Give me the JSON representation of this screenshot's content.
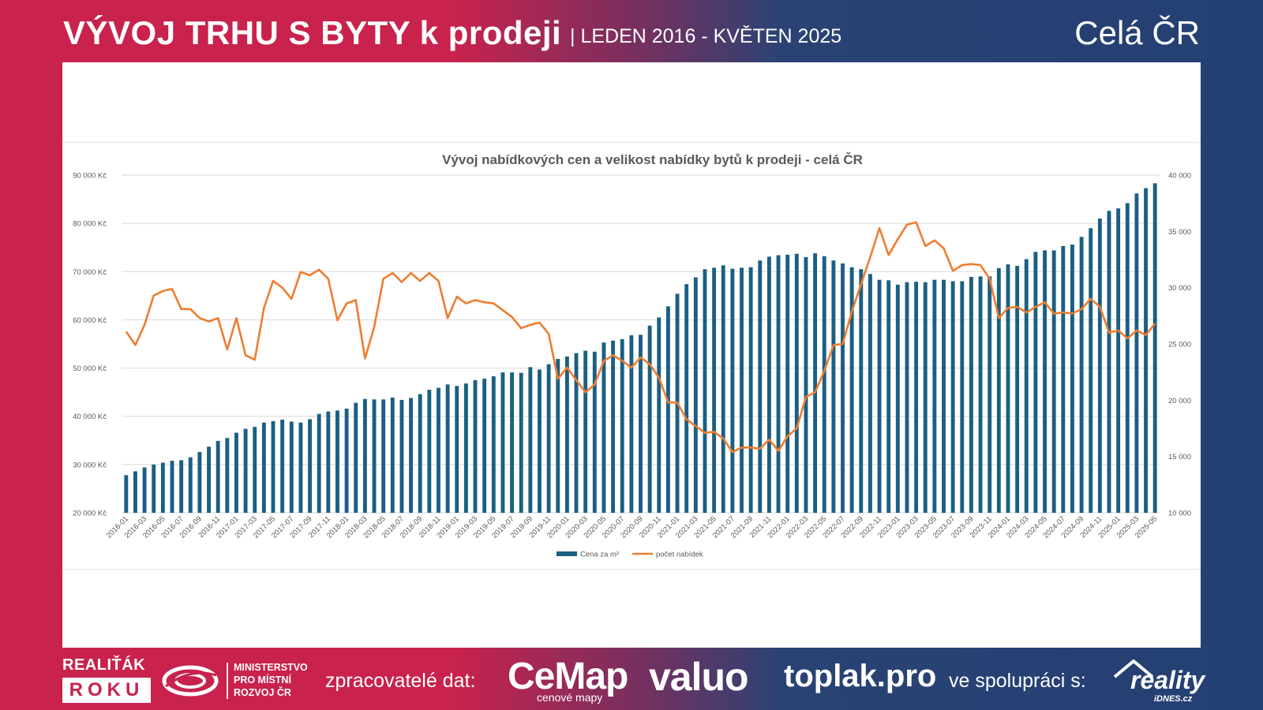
{
  "header": {
    "title": "VÝVOJ TRHU S BYTY k prodeji",
    "subtitle": "| LEDEN 2016 - KVĚTEN 2025",
    "region": "Celá ČR"
  },
  "colors": {
    "bar": "#1b5f82",
    "line": "#ee7d31",
    "brand_red": "#c8224d",
    "brand_blue": "#243f73"
  },
  "chart_data": {
    "type": "bar+line",
    "title": "Vývoj nabídkových cen a velikost nabídky bytů k prodeji - celá ČR",
    "grid": true,
    "legend_position": "bottom",
    "y_left": {
      "label": "Cena za m²",
      "ylim": [
        20000,
        90000
      ],
      "ticks": [
        20000,
        30000,
        40000,
        50000,
        60000,
        70000,
        80000,
        90000
      ],
      "tick_labels": [
        "20 000 Kč",
        "30 000 Kč",
        "40 000 Kč",
        "50 000 Kč",
        "60 000 Kč",
        "70 000 Kč",
        "80 000 Kč",
        "90 000 Kč"
      ]
    },
    "y_right": {
      "label": "počet nabídek",
      "ylim": [
        10000,
        40000
      ],
      "ticks": [
        10000,
        15000,
        20000,
        25000,
        30000,
        35000,
        40000
      ],
      "tick_labels": [
        "10 000",
        "15 000",
        "20 000",
        "25 000",
        "30 000",
        "35 000",
        "40 000"
      ]
    },
    "x_tick_labels": [
      "2016-01",
      "2016-03",
      "2016-05",
      "2016-07",
      "2016-09",
      "2016-11",
      "2017-01",
      "2017-03",
      "2017-05",
      "2017-07",
      "2017-09",
      "2017-11",
      "2018-01",
      "2018-03",
      "2018-05",
      "2018-07",
      "2018-09",
      "2018-11",
      "2019-01",
      "2019-03",
      "2019-05",
      "2019-07",
      "2019-09",
      "2019-11",
      "2020-01",
      "2020-03",
      "2020-05",
      "2020-07",
      "2020-09",
      "2020-11",
      "2021-01",
      "2021-03",
      "2021-05",
      "2021-07",
      "2021-09",
      "2021-11",
      "2022-01",
      "2022-03",
      "2022-05",
      "2022-07",
      "2022-09",
      "2022-11",
      "2023-01",
      "2023-03",
      "2023-05",
      "2023-07",
      "2023-09",
      "2023-11",
      "2024-01",
      "2024-03",
      "2024-05",
      "2024-07",
      "2024-09",
      "2024-11",
      "2025-01",
      "2025-03",
      "2025-05"
    ],
    "series": [
      {
        "name": "Cena za m²",
        "type": "bar",
        "axis": "left",
        "values": [
          27800,
          28600,
          29400,
          30000,
          30400,
          30800,
          30900,
          31500,
          32600,
          33700,
          34900,
          35500,
          36600,
          37400,
          37800,
          38700,
          39000,
          39300,
          38900,
          38700,
          39400,
          40500,
          41000,
          41200,
          41600,
          42800,
          43600,
          43500,
          43500,
          43900,
          43400,
          43800,
          44600,
          45500,
          45900,
          46600,
          46300,
          46800,
          47500,
          47800,
          48300,
          49100,
          49100,
          49000,
          50200,
          49700,
          50800,
          51900,
          52400,
          53100,
          53600,
          53400,
          55300,
          55700,
          56000,
          56800,
          56900,
          58800,
          60500,
          62800,
          65400,
          67400,
          68800,
          70500,
          70800,
          71300,
          70600,
          70800,
          70900,
          72300,
          73100,
          73400,
          73500,
          73700,
          73000,
          73800,
          73200,
          72300,
          71700,
          70900,
          70500,
          69500,
          68300,
          68200,
          67300,
          67800,
          67900,
          67800,
          68300,
          68300,
          68000,
          68000,
          68900,
          69000,
          69000,
          70700,
          71500,
          71200,
          72600,
          74100,
          74400,
          74400,
          75300,
          75600,
          77200,
          79000,
          81000,
          82600,
          83100,
          84200,
          86200,
          87300,
          88300
        ]
      },
      {
        "name": "počet nabídek",
        "type": "line",
        "axis": "right",
        "values": [
          26100,
          24900,
          26700,
          29300,
          29700,
          29900,
          28100,
          28100,
          27300,
          27000,
          27300,
          24500,
          27300,
          24000,
          23600,
          28200,
          30600,
          30000,
          29000,
          31400,
          31100,
          31600,
          30800,
          27100,
          28600,
          28900,
          23700,
          26500,
          30800,
          31300,
          30500,
          31300,
          30600,
          31300,
          30600,
          27300,
          29200,
          28600,
          28900,
          28700,
          28600,
          28000,
          27400,
          26400,
          26700,
          26900,
          25900,
          21900,
          22900,
          21800,
          20700,
          21400,
          23500,
          24000,
          23500,
          22900,
          23800,
          23200,
          22000,
          19800,
          19800,
          18300,
          17700,
          17100,
          17200,
          16600,
          15400,
          15800,
          15800,
          15700,
          16500,
          15500,
          16800,
          17500,
          20300,
          20700,
          22600,
          24900,
          25000,
          27900,
          30300,
          32700,
          35300,
          32900,
          34300,
          35600,
          35800,
          33700,
          34200,
          33500,
          31500,
          32000,
          32100,
          32000,
          30800,
          27300,
          28200,
          28300,
          27800,
          28300,
          28700,
          27700,
          27800,
          27700,
          28100,
          29000,
          28300,
          26000,
          26200,
          25500,
          26200,
          25800,
          26800
        ]
      }
    ]
  },
  "footer": {
    "award_top": "REALIŤÁK",
    "award_bottom": "ROKU",
    "ministry": [
      "MINISTERSTVO",
      "PRO MÍSTNÍ",
      "ROZVOJ ČR"
    ],
    "processors_label": "zpracovatelé dat:",
    "cemap": "CeMap",
    "cemap_sub": "cenové mapy",
    "valuo": "valuo",
    "toplak": "toplak.pro",
    "cooperation_label": "ve spolupráci s:",
    "reality": "reality",
    "idnes": "iDNES.cz"
  }
}
